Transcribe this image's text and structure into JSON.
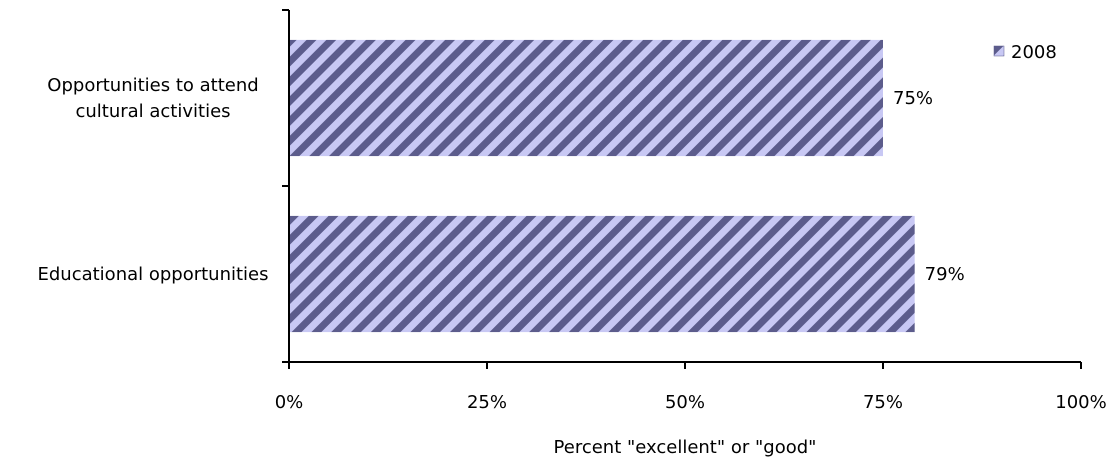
{
  "chart_data": {
    "type": "bar",
    "orientation": "horizontal",
    "categories": [
      "Opportunities to attend cultural activities",
      "Educational opportunities"
    ],
    "category_lines": [
      [
        "Opportunities to attend",
        "cultural activities"
      ],
      [
        "Educational opportunities"
      ]
    ],
    "series": [
      {
        "name": "2008",
        "values": [
          75,
          79
        ],
        "value_labels": [
          "75%",
          "79%"
        ]
      }
    ],
    "xlabel": "Percent \"excellent\" or \"good\"",
    "ylabel": "",
    "xlim": [
      0,
      100
    ],
    "x_ticks": [
      0,
      25,
      50,
      75,
      100
    ],
    "x_tick_labels": [
      "0%",
      "25%",
      "50%",
      "75%",
      "100%"
    ],
    "grid": false,
    "legend_position": "top-right",
    "colors": {
      "bar_light": "#c8c8f4",
      "bar_dark": "#5c5c8c"
    }
  }
}
